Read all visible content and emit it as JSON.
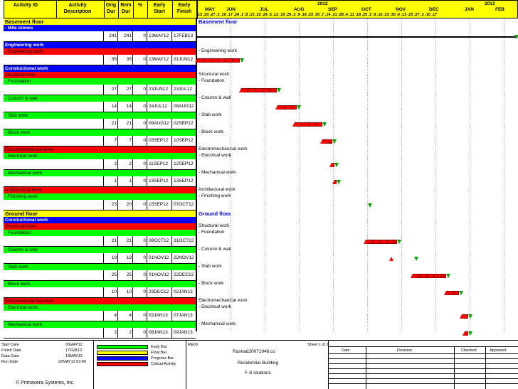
{
  "header": {
    "activity_id": "Activity ID",
    "activity_description": "Activity Description",
    "orig_dur": "Orig Dur",
    "rem_dur": "Rem Dur",
    "pct": "%",
    "early_start": "Early Start",
    "early_finish": "Early Finish",
    "years": [
      "2012",
      "2013"
    ],
    "months": [
      "MAY",
      "JUN",
      "JUL",
      "AUG",
      "SEP",
      "OCT",
      "NOV",
      "DEC",
      "JAN",
      "FEB"
    ],
    "days_row": "13 ,20 ,27 ,3 ,10 ,17 ,24 ,1 ,8 ,15 ,22 ,29 ,5 ,12 ,19 ,26 ,2 ,9 ,16 ,23 ,30 ,7 ,14 ,21 ,28 ,4 ,11 ,18 ,25 ,2 ,9 ,16 ,23 ,30 ,6 ,13 ,20 ,27 ,3 ,10 ,17"
  },
  "rows": [
    {
      "kind": "yellow",
      "label": "Basement floor",
      "gantt_label": "Basement floor"
    },
    {
      "kind": "blue",
      "label": "- Mile stones"
    },
    {
      "kind": "act",
      "orig": "241",
      "rem": "241",
      "pct": "0",
      "start": "13MAY12",
      "finish": "17FEB13"
    },
    {
      "kind": "blue",
      "label": "Engineering work"
    },
    {
      "kind": "red",
      "label": "- Engineering work",
      "gantt_label": "- Engineering work"
    },
    {
      "kind": "act",
      "orig": "35",
      "rem": "35",
      "pct": "0",
      "start": "13MAY12",
      "finish": "21JUN12"
    },
    {
      "kind": "blue",
      "label": "Constuctional work"
    },
    {
      "kind": "red",
      "label": "Structural work",
      "gantt_label": "Structural work"
    },
    {
      "kind": "green",
      "label": "- Foundation",
      "gantt_label": "- Foundation"
    },
    {
      "kind": "act",
      "orig": "27",
      "rem": "27",
      "pct": "0",
      "start": "23JUN12",
      "finish": "23JUL12"
    },
    {
      "kind": "green",
      "label": "- Column & wall",
      "gantt_label": "- Column & wall"
    },
    {
      "kind": "act",
      "orig": "14",
      "rem": "14",
      "pct": "0",
      "start": "24JUL12",
      "finish": "08AUG12"
    },
    {
      "kind": "green",
      "label": "- Slab work",
      "gantt_label": "- Slab work"
    },
    {
      "kind": "act",
      "orig": "21",
      "rem": "21",
      "pct": "0",
      "start": "09AUG12",
      "finish": "02SEP12"
    },
    {
      "kind": "green",
      "label": "- Block work",
      "gantt_label": "- Block work"
    },
    {
      "kind": "act",
      "orig": "7",
      "rem": "7",
      "pct": "0",
      "start": "03SEP12",
      "finish": "10SEP12"
    },
    {
      "kind": "red",
      "label": "Electromechanical work",
      "gantt_label": "Electromechanical work"
    },
    {
      "kind": "green",
      "label": "- Electrical work",
      "gantt_label": "- Electrical work"
    },
    {
      "kind": "act",
      "orig": "2",
      "rem": "2",
      "pct": "0",
      "start": "11SEP12",
      "finish": "12SEP12"
    },
    {
      "kind": "green",
      "label": "- Mechanical work",
      "gantt_label": "- Mechanical work"
    },
    {
      "kind": "act",
      "orig": "1",
      "rem": "1",
      "pct": "0",
      "start": "13SEP12",
      "finish": "13SEP12"
    },
    {
      "kind": "red",
      "label": "Architectural work",
      "gantt_label": "Architectural work"
    },
    {
      "kind": "green",
      "label": "- Finishing work",
      "gantt_label": "- Finishing work"
    },
    {
      "kind": "act",
      "orig": "23",
      "rem": "20",
      "pct": "0",
      "start": "15SEP12",
      "finish": "07OCT12"
    },
    {
      "kind": "yellow",
      "label": "Ground floor",
      "gantt_label": "Ground floor"
    },
    {
      "kind": "blue",
      "label": "Constuctional work"
    },
    {
      "kind": "red",
      "label": "Structural work",
      "gantt_label": "Structural work"
    },
    {
      "kind": "green",
      "label": "- Foundation",
      "gantt_label": "- Foundation"
    },
    {
      "kind": "act",
      "orig": "21",
      "rem": "21",
      "pct": "0",
      "start": "08OCT12",
      "finish": "31OCT12"
    },
    {
      "kind": "green",
      "label": "- Column & wall",
      "gantt_label": "- Column & wall"
    },
    {
      "kind": "act",
      "orig": "19",
      "rem": "19",
      "pct": "0",
      "start": "01NOV12",
      "finish": "22NOV12"
    },
    {
      "kind": "green",
      "label": "- Slab work",
      "gantt_label": "- Slab work"
    },
    {
      "kind": "act",
      "orig": "25",
      "rem": "25",
      "pct": "0",
      "start": "01NOV12",
      "finish": "22DEC12"
    },
    {
      "kind": "green",
      "label": "- Block work",
      "gantt_label": "- Block work"
    },
    {
      "kind": "act",
      "orig": "10",
      "rem": "10",
      "pct": "0",
      "start": "23DEC12",
      "finish": "02JAN13"
    },
    {
      "kind": "red",
      "label": "Electromechanical work",
      "gantt_label": "Electromechanical work"
    },
    {
      "kind": "green",
      "label": "- Electrical work",
      "gantt_label": "- Electrical work"
    },
    {
      "kind": "act",
      "orig": "4",
      "rem": "4",
      "pct": "0",
      "start": "03JAN13",
      "finish": "07JAN13"
    },
    {
      "kind": "green",
      "label": "- Mechanical work",
      "gantt_label": "- Mechanical work"
    },
    {
      "kind": "act",
      "orig": "2",
      "rem": "2",
      "pct": "0",
      "start": "08JAN13",
      "finish": "09JAN13"
    }
  ],
  "footer": {
    "start_date_label": "Start Date",
    "start_date": "06MAY12",
    "finish_date_label": "Finish Date",
    "finish_date": "17FEB13",
    "data_date_label": "Data Date",
    "data_date": "13MAY12",
    "run_date_label": "Run Date",
    "run_date": "22MAY12 03:49",
    "copyright": "© Primavera Systems, Inc.",
    "legend": [
      "Early Bar",
      "Float Bar",
      "Progress Bar",
      "Critical Activity"
    ],
    "code": "RE00",
    "sheet": "Sheet 1 of 2",
    "title1": "Rashad20071046.co",
    "title2": "Residential Building",
    "title3": "F-S relations",
    "rev_headers": [
      "Date",
      "Revision",
      "Checked",
      "Approved"
    ]
  },
  "colors": {
    "yellow": "#ffff00",
    "blue": "#0000ff",
    "red": "#ff0000",
    "green": "#00ff00"
  }
}
